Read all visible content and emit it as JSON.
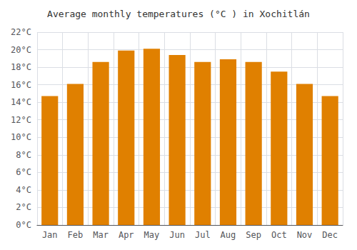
{
  "chart_data": {
    "type": "bar",
    "title": "Average monthly temperatures (°C ) in Xochitlán",
    "categories": [
      "Jan",
      "Feb",
      "Mar",
      "Apr",
      "May",
      "Jun",
      "Jul",
      "Aug",
      "Sep",
      "Oct",
      "Nov",
      "Dec"
    ],
    "values": [
      14.7,
      16.1,
      18.6,
      19.9,
      20.1,
      19.4,
      18.6,
      18.9,
      18.6,
      17.5,
      16.1,
      14.7
    ],
    "color": "#E08000",
    "ylim": [
      0,
      22
    ],
    "yticks": [
      {
        "value": 0,
        "label": "0°C"
      },
      {
        "value": 2,
        "label": "2°C"
      },
      {
        "value": 4,
        "label": "4°C"
      },
      {
        "value": 6,
        "label": "6°C"
      },
      {
        "value": 8,
        "label": "8°C"
      },
      {
        "value": 10,
        "label": "10°C"
      },
      {
        "value": 12,
        "label": "12°C"
      },
      {
        "value": 14,
        "label": "14°C"
      },
      {
        "value": 16,
        "label": "16°C"
      },
      {
        "value": 18,
        "label": "18°C"
      },
      {
        "value": 20,
        "label": "20°C"
      },
      {
        "value": 22,
        "label": "22°C"
      }
    ],
    "grid": true
  }
}
